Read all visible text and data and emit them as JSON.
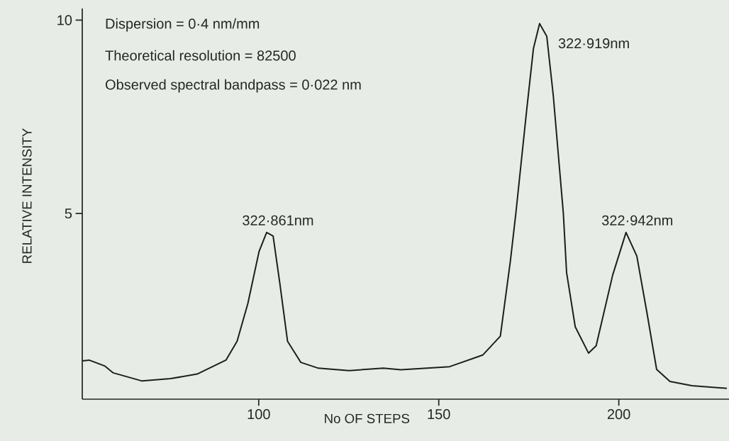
{
  "chart_data": {
    "type": "line",
    "xlabel": "No OF STEPS",
    "ylabel": "RELATIVE INTENSITY",
    "xlim": [
      51,
      230.6
    ],
    "ylim": [
      0.2,
      10.3
    ],
    "xticks": [
      100,
      150,
      200
    ],
    "yticks": [
      5,
      10
    ],
    "marker": "none",
    "line_style": "solid",
    "annotations": [
      "Dispersion = 0·4 nm/mm",
      "Theoretical resolution = 82500",
      "Observed spectral bandpass = 0·022 nm",
      {
        "text": "322·861nm",
        "x": 102.2,
        "y": 4.51
      },
      {
        "text": "322·919nm",
        "x": 178.0,
        "y": 9.91
      },
      {
        "text": "322·942nm",
        "x": 202.0,
        "y": 4.51
      }
    ],
    "series": [
      {
        "color": "#1e1e1e",
        "x": [
          51.0,
          52.9,
          57.2,
          59.6,
          67.6,
          75.5,
          82.9,
          90.9,
          94.0,
          97.0,
          100.1,
          102.2,
          104.0,
          105.9,
          108.0,
          111.7,
          116.6,
          125.1,
          134.6,
          139.5,
          153.0,
          162.2,
          167.1,
          169.9,
          171.4,
          174.5,
          176.3,
          178.0,
          180.0,
          181.8,
          184.6,
          185.5,
          187.9,
          191.6,
          193.7,
          198.3,
          202.0,
          205.0,
          207.8,
          210.5,
          214.2,
          220.3,
          230.0
        ],
        "values": [
          1.19,
          1.21,
          1.06,
          0.88,
          0.67,
          0.73,
          0.85,
          1.21,
          1.7,
          2.68,
          4.02,
          4.51,
          4.42,
          3.17,
          1.7,
          1.15,
          1.0,
          0.94,
          1.0,
          0.96,
          1.04,
          1.34,
          1.83,
          3.78,
          5.0,
          7.75,
          9.27,
          9.91,
          9.58,
          8.05,
          5.0,
          3.47,
          2.07,
          1.39,
          1.58,
          3.41,
          4.51,
          3.9,
          2.44,
          0.97,
          0.66,
          0.55,
          0.48
        ]
      }
    ]
  }
}
